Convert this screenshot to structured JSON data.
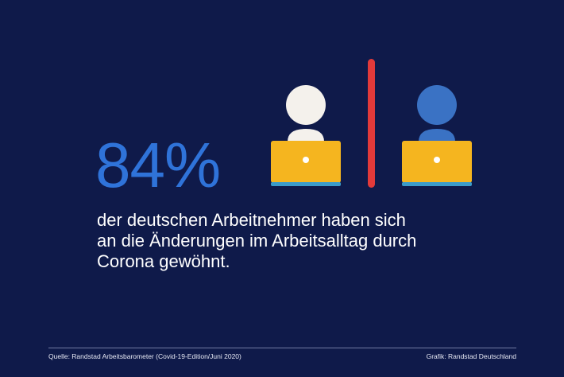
{
  "headline": {
    "percent": "84%"
  },
  "description": {
    "lines": [
      "der deutschen Arbeitnehmer haben sich",
      "an die Änderungen im Arbeitsalltag durch",
      "Corona gewöhnt."
    ]
  },
  "footer": {
    "source": "Quelle: Randstad Arbeitsbarometer (Covid-19-Edition/Juni 2020)",
    "credit": "Grafik: Randstad Deutschland"
  },
  "colors": {
    "background": "#0f1a4a",
    "percent": "#2f73d9",
    "divider": "#e23a3a",
    "laptop": "#f5b51f",
    "laptop_base": "#3b9bc9",
    "person_left": "#f4f1ec",
    "person_right": "#3a72c4"
  },
  "icons": [
    "person-at-laptop-icon",
    "person-at-laptop-icon"
  ]
}
